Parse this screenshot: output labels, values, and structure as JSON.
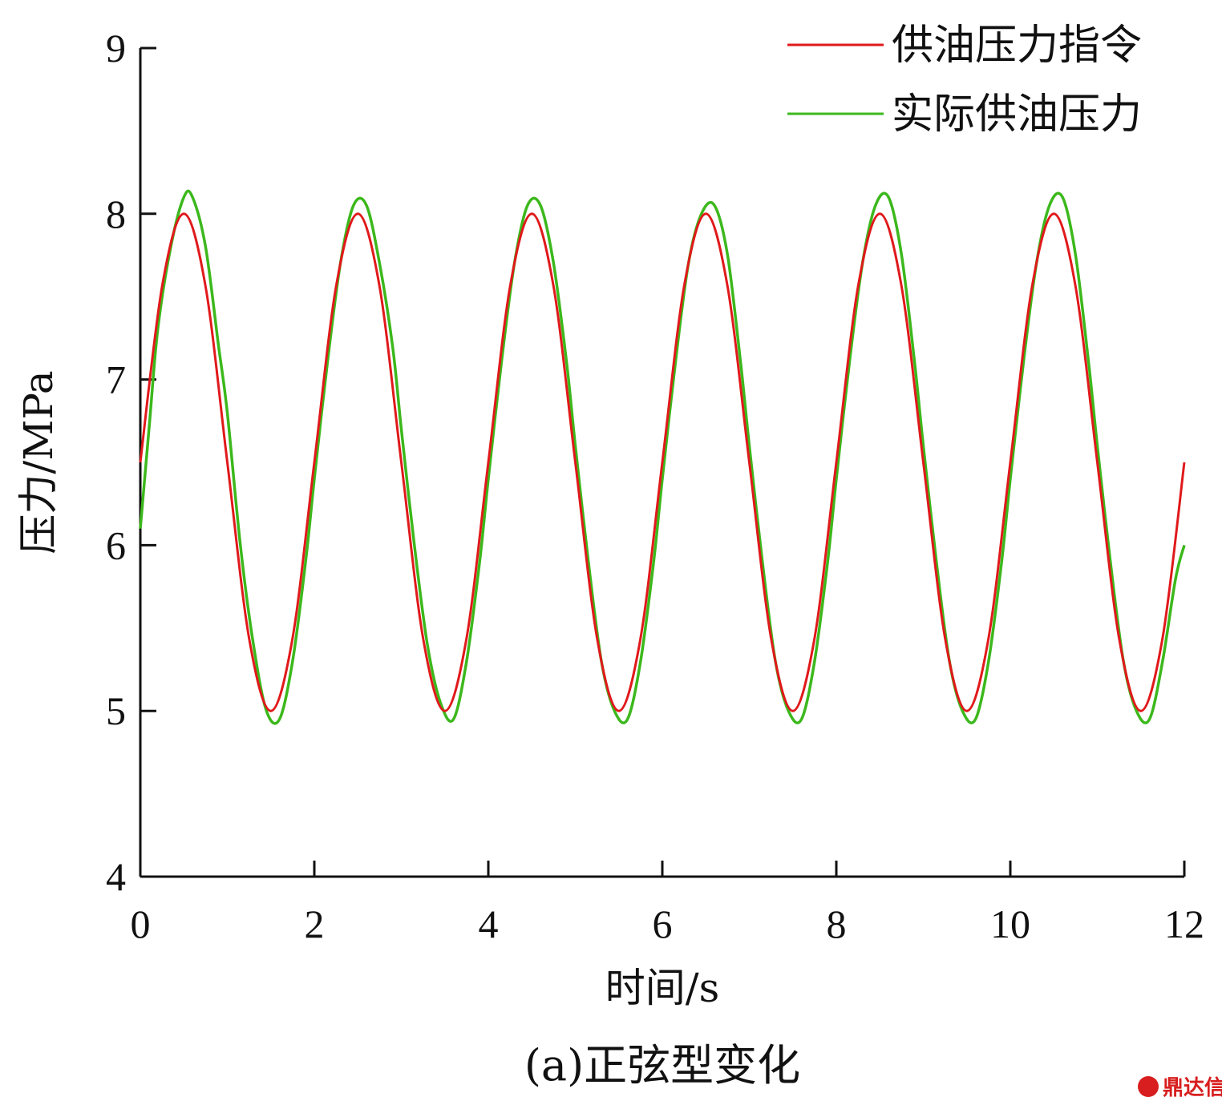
{
  "chart_data": {
    "type": "line",
    "xlabel": "时间/s",
    "ylabel": "压力/MPa",
    "caption": "(a)正弦型变化",
    "xlim": [
      0,
      12
    ],
    "ylim": [
      4,
      9
    ],
    "xticks": [
      0,
      2,
      4,
      6,
      8,
      10,
      12
    ],
    "yticks": [
      4,
      5,
      6,
      7,
      8,
      9
    ],
    "xtick_labels": [
      "0",
      "2",
      "4",
      "6",
      "8",
      "10",
      "12"
    ],
    "ytick_labels": [
      "4",
      "5",
      "6",
      "7",
      "8",
      "9"
    ],
    "grid": false,
    "legend_position": "top-right",
    "series": [
      {
        "name": "供油压力指令",
        "color": "#e0191b",
        "x": [
          0,
          0.25,
          0.5,
          0.75,
          1.0,
          1.25,
          1.5,
          1.75,
          2.0,
          2.25,
          2.5,
          2.75,
          3.0,
          3.25,
          3.5,
          3.75,
          4.0,
          4.25,
          4.5,
          4.75,
          5.0,
          5.25,
          5.5,
          5.75,
          6.0,
          6.25,
          6.5,
          6.75,
          7.0,
          7.25,
          7.5,
          7.75,
          8.0,
          8.25,
          8.5,
          8.75,
          9.0,
          9.25,
          9.5,
          9.75,
          10.0,
          10.25,
          10.5,
          10.75,
          11.0,
          11.25,
          11.5,
          11.75,
          12.0
        ],
        "y": [
          6.5,
          7.56,
          8.0,
          7.56,
          6.5,
          5.44,
          5.0,
          5.44,
          6.5,
          7.56,
          8.0,
          7.56,
          6.5,
          5.44,
          5.0,
          5.44,
          6.5,
          7.56,
          8.0,
          7.56,
          6.5,
          5.44,
          5.0,
          5.44,
          6.5,
          7.56,
          8.0,
          7.56,
          6.5,
          5.44,
          5.0,
          5.44,
          6.5,
          7.56,
          8.0,
          7.56,
          6.5,
          5.44,
          5.0,
          5.44,
          6.5,
          7.56,
          8.0,
          7.56,
          6.5,
          5.44,
          5.0,
          5.44,
          6.5
        ]
      },
      {
        "name": "实际供油压力",
        "color": "#3cb81c",
        "x": [
          0,
          0.1,
          0.2,
          0.35,
          0.5,
          0.6,
          0.75,
          0.9,
          1.0,
          1.15,
          1.3,
          1.45,
          1.6,
          1.75,
          1.9,
          2.0,
          2.15,
          2.3,
          2.45,
          2.6,
          2.75,
          2.9,
          3.0,
          3.15,
          3.3,
          3.45,
          3.6,
          3.75,
          3.9,
          4.0,
          4.15,
          4.3,
          4.45,
          4.6,
          4.75,
          4.9,
          5.0,
          5.15,
          5.3,
          5.45,
          5.6,
          5.75,
          5.9,
          6.0,
          6.15,
          6.3,
          6.45,
          6.6,
          6.75,
          6.9,
          7.0,
          7.15,
          7.3,
          7.45,
          7.6,
          7.75,
          7.9,
          8.0,
          8.15,
          8.3,
          8.45,
          8.6,
          8.75,
          8.9,
          9.0,
          9.15,
          9.3,
          9.45,
          9.6,
          9.75,
          9.9,
          10.0,
          10.15,
          10.3,
          10.45,
          10.6,
          10.75,
          10.9,
          11.0,
          11.15,
          11.3,
          11.45,
          11.6,
          11.75,
          11.9,
          12.0
        ],
        "y": [
          6.1,
          6.7,
          7.3,
          7.8,
          8.1,
          8.1,
          7.8,
          7.2,
          6.8,
          6.0,
          5.4,
          5.0,
          4.95,
          5.3,
          5.9,
          6.4,
          7.1,
          7.7,
          8.05,
          8.05,
          7.7,
          7.2,
          6.7,
          6.0,
          5.4,
          5.05,
          4.95,
          5.3,
          5.9,
          6.4,
          7.1,
          7.7,
          8.05,
          8.05,
          7.7,
          7.1,
          6.6,
          5.9,
          5.3,
          5.0,
          4.95,
          5.3,
          5.9,
          6.4,
          7.1,
          7.7,
          8.0,
          8.05,
          7.75,
          7.1,
          6.6,
          5.9,
          5.3,
          5.0,
          4.95,
          5.3,
          5.9,
          6.4,
          7.1,
          7.7,
          8.05,
          8.1,
          7.75,
          7.1,
          6.6,
          5.9,
          5.3,
          5.0,
          4.95,
          5.3,
          5.9,
          6.4,
          7.1,
          7.7,
          8.05,
          8.1,
          7.75,
          7.1,
          6.6,
          5.9,
          5.3,
          5.0,
          4.95,
          5.3,
          5.8,
          6.0
        ]
      }
    ]
  },
  "watermark": {
    "text": "鼎达信"
  }
}
